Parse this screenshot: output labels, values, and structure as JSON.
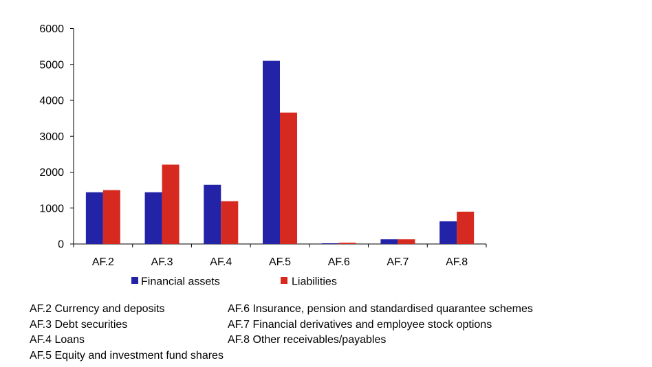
{
  "chart_data": {
    "type": "bar",
    "title": "",
    "xlabel": "",
    "ylabel": "",
    "categories": [
      "AF.2",
      "AF.3",
      "AF.4",
      "AF.5",
      "AF.6",
      "AF.7",
      "AF.8"
    ],
    "series": [
      {
        "name": "Financial assets",
        "color": "#2323A8",
        "values": [
          1440,
          1440,
          1650,
          5100,
          20,
          130,
          630
        ]
      },
      {
        "name": "Liabilities",
        "color": "#D62A20",
        "values": [
          1500,
          2210,
          1190,
          3660,
          35,
          130,
          900
        ]
      }
    ],
    "ylim": [
      0,
      6000
    ],
    "yticks": [
      0,
      1000,
      2000,
      3000,
      4000,
      5000,
      6000
    ],
    "grid": false,
    "legend": "bottom"
  },
  "notes": {
    "left": [
      "AF.2 Currency and deposits",
      "AF.3 Debt securities",
      "AF.4 Loans",
      "AF.5 Equity and investment fund shares"
    ],
    "right": [
      "AF.6 Insurance, pension and standardised quarantee schemes",
      "AF.7 Financial derivatives and employee stock options",
      "AF.8 Other receivables/payables"
    ]
  }
}
